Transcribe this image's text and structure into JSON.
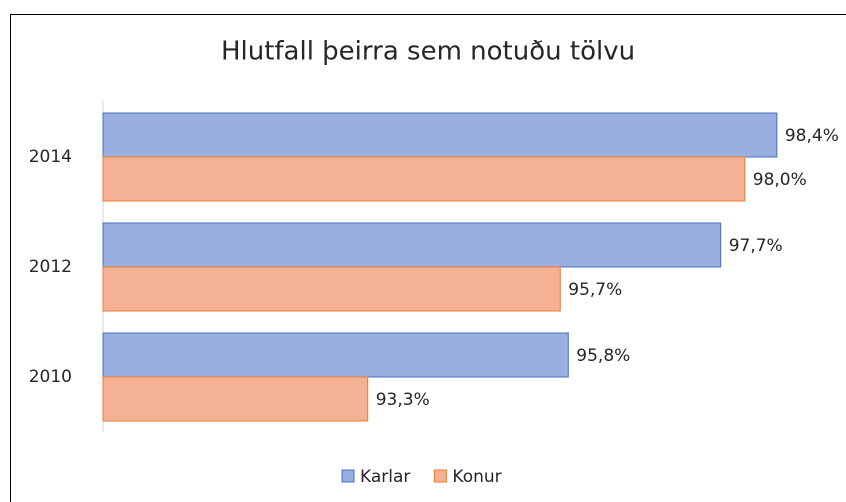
{
  "chart_data": {
    "type": "bar",
    "orientation": "horizontal",
    "title": "Hlutfall þeirra sem notuðu tölvu",
    "categories": [
      "2014",
      "2012",
      "2010"
    ],
    "series": [
      {
        "name": "Karlar",
        "color": "#9aaee0",
        "values": [
          98.4,
          97.7,
          95.8
        ],
        "value_labels": [
          "98,4%",
          "97,7%",
          "95,8%"
        ]
      },
      {
        "name": "Konur",
        "color": "#f4b193",
        "values": [
          98.0,
          95.7,
          93.3
        ],
        "value_labels": [
          "98,0%",
          "95,7%",
          "93,3%"
        ]
      }
    ],
    "xlim": [
      90,
      99
    ],
    "legend": "bottom"
  }
}
